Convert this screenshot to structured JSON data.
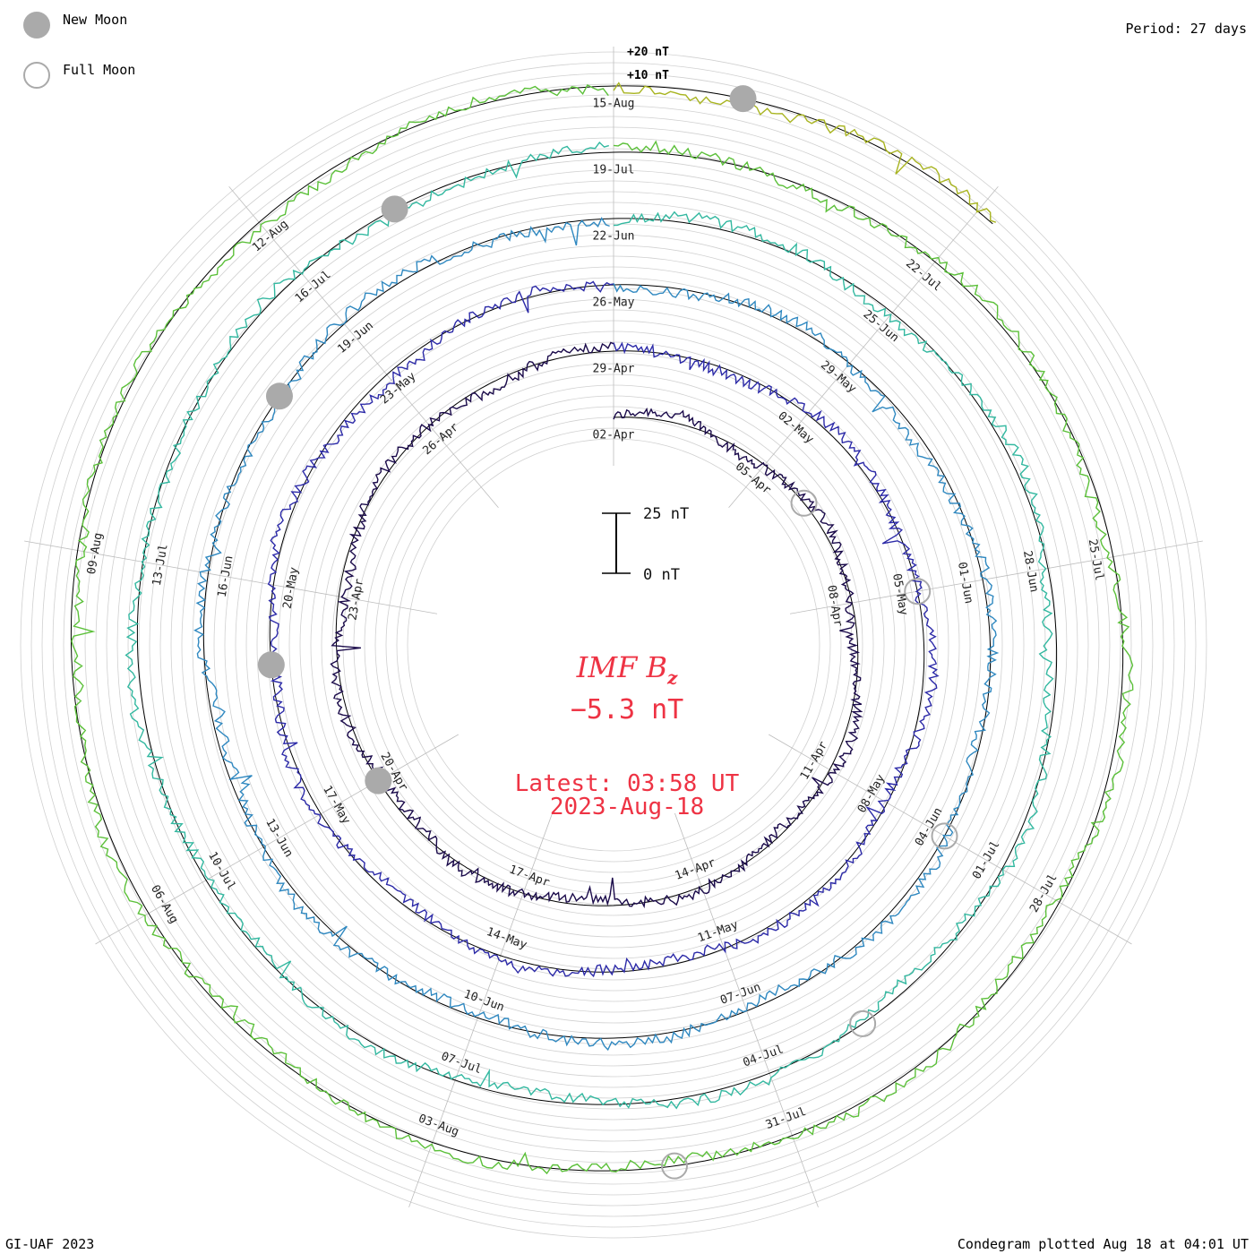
{
  "legend": {
    "new_moon_label": "New Moon",
    "full_moon_label": "Full Moon",
    "new_moon_color": "#aaaaaa",
    "full_moon_color": "#aaaaaa"
  },
  "header": {
    "period_label": "Period: 27 days"
  },
  "footer": {
    "credit": "GI-UAF 2023",
    "plotted_label": "Condegram plotted Aug 18 at 04:01 UT"
  },
  "center": {
    "quantity_name": "IMF B",
    "quantity_subscript": "z",
    "current_value": "−5.3 nT",
    "latest_time": "Latest: 03:58 UT",
    "latest_date": "2023-Aug-18",
    "text_color": "#ee3344"
  },
  "scale_bar": {
    "top_label": "25 nT",
    "bottom_label": "0 nT",
    "span_nT": 25
  },
  "ring_labels": [
    "+20 nT",
    "+10 nT"
  ],
  "chart_data": {
    "type": "line",
    "layout": "spiral condegram",
    "period_days": 27,
    "start_date": "2023-04-02",
    "end_date": "2023-08-18",
    "quantity": "IMF Bz",
    "units": "nT",
    "date_ticks": [
      "02-Apr",
      "05-Apr",
      "08-Apr",
      "11-Apr",
      "14-Apr",
      "17-Apr",
      "20-Apr",
      "23-Apr",
      "26-Apr",
      "29-Apr",
      "02-May",
      "05-May",
      "08-May",
      "11-May",
      "14-May",
      "17-May",
      "20-May",
      "23-May",
      "26-May",
      "29-May",
      "01-Jun",
      "04-Jun",
      "07-Jun",
      "10-Jun",
      "13-Jun",
      "16-Jun",
      "19-Jun",
      "22-Jun",
      "25-Jun",
      "28-Jun",
      "01-Jul",
      "04-Jul",
      "07-Jul",
      "10-Jul",
      "13-Jul",
      "16-Jul",
      "19-Jul",
      "22-Jul",
      "25-Jul",
      "28-Jul",
      "31-Jul",
      "03-Aug",
      "06-Aug",
      "09-Aug",
      "12-Aug",
      "15-Aug"
    ],
    "series_colors": [
      "#1a0a4a",
      "#2c2aa8",
      "#2f88c0",
      "#33b8a0",
      "#5cc03a",
      "#a8b420",
      "#c08820",
      "#c04a10",
      "#c01010"
    ],
    "new_moon_dates": [
      "2023-04-20",
      "2023-05-19",
      "2023-06-18",
      "2023-07-17",
      "2023-08-16"
    ],
    "full_moon_dates": [
      "2023-04-06",
      "2023-05-05",
      "2023-06-04",
      "2023-07-03",
      "2023-08-01"
    ],
    "stats": {
      "min": -25,
      "max": 20,
      "latest": -5.3
    }
  }
}
